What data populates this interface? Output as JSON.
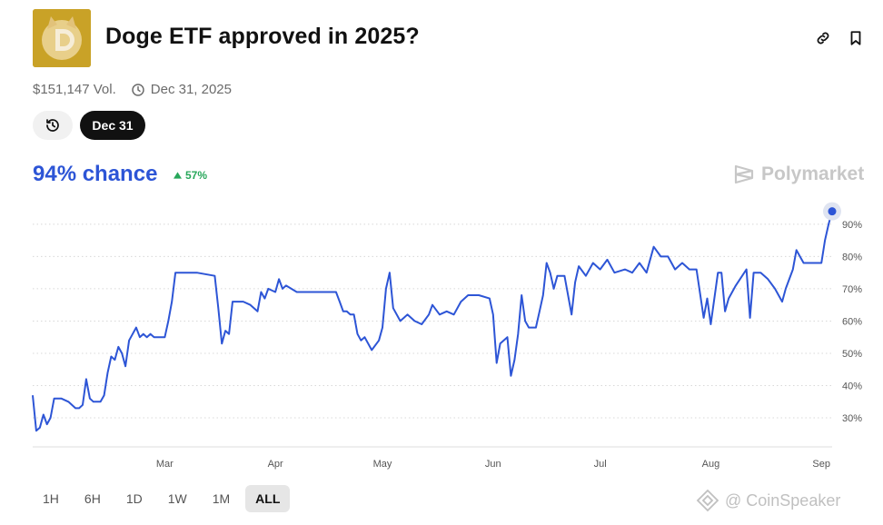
{
  "header": {
    "title": "Doge ETF approved in 2025?",
    "logo_icon": "doge-logo-icon",
    "link_icon": "link-icon",
    "bookmark_icon": "bookmark-icon"
  },
  "meta": {
    "volume": "$151,147 Vol.",
    "end_date": "Dec 31, 2025",
    "clock_icon": "clock-icon"
  },
  "pills": {
    "history_icon": "history-icon",
    "date_label": "Dec 31"
  },
  "stats": {
    "chance": "94% chance",
    "delta": "57%",
    "delta_icon": "triangle-up-icon"
  },
  "brand": {
    "name": "Polymarket"
  },
  "ranges": [
    {
      "label": "1H",
      "active": false
    },
    {
      "label": "6H",
      "active": false
    },
    {
      "label": "1D",
      "active": false
    },
    {
      "label": "1W",
      "active": false
    },
    {
      "label": "1M",
      "active": false
    },
    {
      "label": "ALL",
      "active": true
    }
  ],
  "watermark": {
    "text": "@ CoinSpeaker"
  },
  "colors": {
    "line": "#2d55d6",
    "positive": "#27a75a",
    "brand": "#c7c7c7",
    "grid": "#d8d8d8"
  },
  "chart_data": {
    "type": "line",
    "title": "",
    "xlabel": "",
    "ylabel": "",
    "x_range": [
      "2025-01-23",
      "2025-09-04"
    ],
    "ylim": [
      21,
      97
    ],
    "y_ticks": [
      30,
      40,
      50,
      60,
      70,
      80,
      90
    ],
    "y_tick_labels": [
      "30%",
      "40%",
      "50%",
      "60%",
      "70%",
      "80%",
      "90%"
    ],
    "x_ticks": [
      {
        "date": "2025-03-01",
        "label": "Mar"
      },
      {
        "date": "2025-04-01",
        "label": "Apr"
      },
      {
        "date": "2025-05-01",
        "label": "May"
      },
      {
        "date": "2025-06-01",
        "label": "Jun"
      },
      {
        "date": "2025-07-01",
        "label": "Jul"
      },
      {
        "date": "2025-08-01",
        "label": "Aug"
      },
      {
        "date": "2025-09-01",
        "label": "Sep"
      }
    ],
    "grid": "horizontal-dotted",
    "series": [
      {
        "values": [
          [
            "2025-01-23",
            37
          ],
          [
            "2025-01-24",
            26
          ],
          [
            "2025-01-25",
            27
          ],
          [
            "2025-01-26",
            31
          ],
          [
            "2025-01-27",
            28
          ],
          [
            "2025-01-28",
            30
          ],
          [
            "2025-01-29",
            36
          ],
          [
            "2025-01-31",
            36
          ],
          [
            "2025-02-02",
            35
          ],
          [
            "2025-02-04",
            33
          ],
          [
            "2025-02-05",
            33
          ],
          [
            "2025-02-06",
            34
          ],
          [
            "2025-02-07",
            42
          ],
          [
            "2025-02-08",
            36
          ],
          [
            "2025-02-09",
            35
          ],
          [
            "2025-02-11",
            35
          ],
          [
            "2025-02-12",
            37
          ],
          [
            "2025-02-13",
            44
          ],
          [
            "2025-02-14",
            49
          ],
          [
            "2025-02-15",
            48
          ],
          [
            "2025-02-16",
            52
          ],
          [
            "2025-02-17",
            50
          ],
          [
            "2025-02-18",
            46
          ],
          [
            "2025-02-19",
            54
          ],
          [
            "2025-02-20",
            56
          ],
          [
            "2025-02-21",
            58
          ],
          [
            "2025-02-22",
            55
          ],
          [
            "2025-02-23",
            56
          ],
          [
            "2025-02-24",
            55
          ],
          [
            "2025-02-25",
            56
          ],
          [
            "2025-02-26",
            55
          ],
          [
            "2025-02-27",
            55
          ],
          [
            "2025-02-28",
            55
          ],
          [
            "2025-03-01",
            55
          ],
          [
            "2025-03-02",
            60
          ],
          [
            "2025-03-03",
            66
          ],
          [
            "2025-03-04",
            75
          ],
          [
            "2025-03-05",
            75
          ],
          [
            "2025-03-10",
            75
          ],
          [
            "2025-03-15",
            74
          ],
          [
            "2025-03-16",
            64
          ],
          [
            "2025-03-17",
            53
          ],
          [
            "2025-03-18",
            57
          ],
          [
            "2025-03-19",
            56
          ],
          [
            "2025-03-20",
            66
          ],
          [
            "2025-03-21",
            66
          ],
          [
            "2025-03-23",
            66
          ],
          [
            "2025-03-25",
            65
          ],
          [
            "2025-03-27",
            63
          ],
          [
            "2025-03-28",
            69
          ],
          [
            "2025-03-29",
            67
          ],
          [
            "2025-03-30",
            70
          ],
          [
            "2025-04-01",
            69
          ],
          [
            "2025-04-02",
            73
          ],
          [
            "2025-04-03",
            70
          ],
          [
            "2025-04-04",
            71
          ],
          [
            "2025-04-07",
            69
          ],
          [
            "2025-04-13",
            69
          ],
          [
            "2025-04-18",
            69
          ],
          [
            "2025-04-19",
            66
          ],
          [
            "2025-04-20",
            63
          ],
          [
            "2025-04-21",
            63
          ],
          [
            "2025-04-22",
            62
          ],
          [
            "2025-04-23",
            62
          ],
          [
            "2025-04-24",
            56
          ],
          [
            "2025-04-25",
            54
          ],
          [
            "2025-04-26",
            55
          ],
          [
            "2025-04-28",
            51
          ],
          [
            "2025-04-30",
            54
          ],
          [
            "2025-05-01",
            58
          ],
          [
            "2025-05-02",
            70
          ],
          [
            "2025-05-03",
            75
          ],
          [
            "2025-05-04",
            64
          ],
          [
            "2025-05-06",
            60
          ],
          [
            "2025-05-07",
            61
          ],
          [
            "2025-05-08",
            62
          ],
          [
            "2025-05-10",
            60
          ],
          [
            "2025-05-12",
            59
          ],
          [
            "2025-05-14",
            62
          ],
          [
            "2025-05-15",
            65
          ],
          [
            "2025-05-17",
            62
          ],
          [
            "2025-05-19",
            63
          ],
          [
            "2025-05-21",
            62
          ],
          [
            "2025-05-23",
            66
          ],
          [
            "2025-05-25",
            68
          ],
          [
            "2025-05-28",
            68
          ],
          [
            "2025-05-31",
            67
          ],
          [
            "2025-06-01",
            62
          ],
          [
            "2025-06-02",
            47
          ],
          [
            "2025-06-03",
            53
          ],
          [
            "2025-06-05",
            55
          ],
          [
            "2025-06-06",
            43
          ],
          [
            "2025-06-07",
            48
          ],
          [
            "2025-06-08",
            56
          ],
          [
            "2025-06-09",
            68
          ],
          [
            "2025-06-10",
            60
          ],
          [
            "2025-06-11",
            58
          ],
          [
            "2025-06-13",
            58
          ],
          [
            "2025-06-14",
            63
          ],
          [
            "2025-06-15",
            68
          ],
          [
            "2025-06-16",
            78
          ],
          [
            "2025-06-17",
            75
          ],
          [
            "2025-06-18",
            70
          ],
          [
            "2025-06-19",
            74
          ],
          [
            "2025-06-21",
            74
          ],
          [
            "2025-06-23",
            62
          ],
          [
            "2025-06-24",
            72
          ],
          [
            "2025-06-25",
            77
          ],
          [
            "2025-06-27",
            74
          ],
          [
            "2025-06-29",
            78
          ],
          [
            "2025-07-01",
            76
          ],
          [
            "2025-07-03",
            79
          ],
          [
            "2025-07-05",
            75
          ],
          [
            "2025-07-08",
            76
          ],
          [
            "2025-07-10",
            75
          ],
          [
            "2025-07-12",
            78
          ],
          [
            "2025-07-14",
            75
          ],
          [
            "2025-07-16",
            83
          ],
          [
            "2025-07-18",
            80
          ],
          [
            "2025-07-20",
            80
          ],
          [
            "2025-07-22",
            76
          ],
          [
            "2025-07-24",
            78
          ],
          [
            "2025-07-26",
            76
          ],
          [
            "2025-07-28",
            76
          ],
          [
            "2025-07-30",
            61
          ],
          [
            "2025-07-31",
            67
          ],
          [
            "2025-08-01",
            59
          ],
          [
            "2025-08-03",
            75
          ],
          [
            "2025-08-04",
            75
          ],
          [
            "2025-08-05",
            63
          ],
          [
            "2025-08-06",
            67
          ],
          [
            "2025-08-08",
            71
          ],
          [
            "2025-08-11",
            76
          ],
          [
            "2025-08-12",
            61
          ],
          [
            "2025-08-13",
            75
          ],
          [
            "2025-08-15",
            75
          ],
          [
            "2025-08-17",
            73
          ],
          [
            "2025-08-19",
            70
          ],
          [
            "2025-08-21",
            66
          ],
          [
            "2025-08-22",
            70
          ],
          [
            "2025-08-24",
            76
          ],
          [
            "2025-08-25",
            82
          ],
          [
            "2025-08-26",
            80
          ],
          [
            "2025-08-27",
            78
          ],
          [
            "2025-09-01",
            78
          ],
          [
            "2025-09-02",
            85
          ],
          [
            "2025-09-03",
            90
          ],
          [
            "2025-09-04",
            94
          ]
        ]
      }
    ]
  }
}
